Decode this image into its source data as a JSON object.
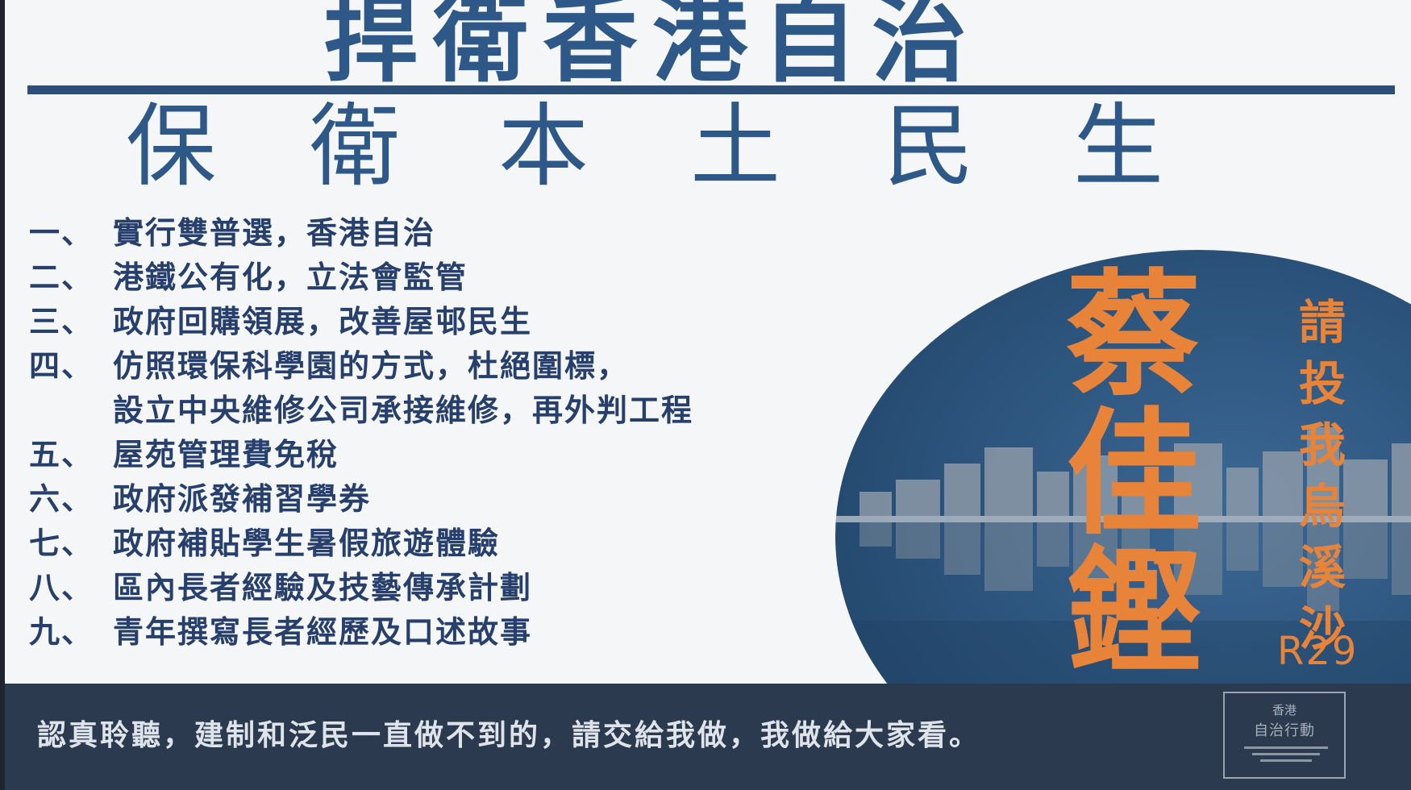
{
  "poster": {
    "title_main": "捍衛香港自治",
    "title_sub_chars": [
      "保",
      "衛",
      "本",
      "土",
      "民",
      "生"
    ],
    "platform": [
      {
        "num": "一、",
        "text": "實行雙普選，香港自治"
      },
      {
        "num": "二、",
        "text": "港鐵公有化，立法會監管"
      },
      {
        "num": "三、",
        "text": "政府回購領展，改善屋邨民生"
      },
      {
        "num": "四、",
        "text": "仿照環保科學園的方式，杜絕圍標，"
      },
      {
        "num": "",
        "text": "設立中央維修公司承接維修，再外判工程"
      },
      {
        "num": "五、",
        "text": "屋苑管理費免稅"
      },
      {
        "num": "六、",
        "text": "政府派發補習學券"
      },
      {
        "num": "七、",
        "text": "政府補貼學生暑假旅遊體驗"
      },
      {
        "num": "八、",
        "text": "區內長者經驗及技藝傳承計劃"
      },
      {
        "num": "九、",
        "text": "青年撰寫長者經歷及口述故事"
      }
    ],
    "candidate_name": [
      "蔡",
      "佳",
      "鏗"
    ],
    "vote_call": [
      "請",
      "投",
      "我",
      "烏",
      "溪",
      "沙"
    ],
    "ballot_no": "R29",
    "footer_text": "認真聆聽，建制和泛民一直做不到的，請交給我做，我做給大家看。",
    "logo": {
      "line1": "香港",
      "line2": "自治行動"
    },
    "colors": {
      "title_blue": "#2d5888",
      "list_navy": "#263f6c",
      "accent_orange": "#e8833a",
      "footer_band": "#2b3a4f"
    }
  }
}
